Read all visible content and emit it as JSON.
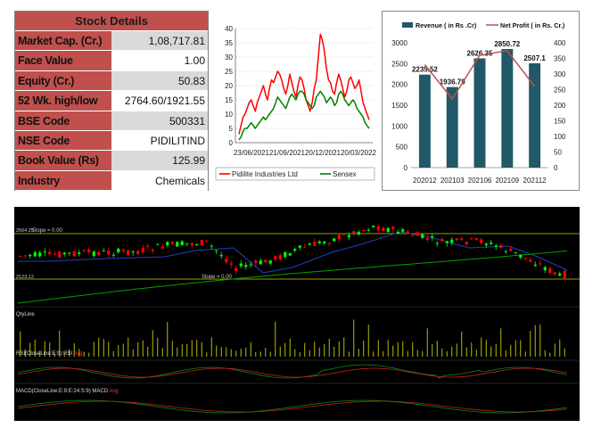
{
  "stock_details": {
    "title": "Stock Details",
    "rows": [
      {
        "label": "Market Cap. (Cr.)",
        "value": "1,08,717.81"
      },
      {
        "label": "Face Value",
        "value": "1.00"
      },
      {
        "label": "Equity (Cr.)",
        "value": "50.83"
      },
      {
        "label": "52 Wk. high/low",
        "value": "2764.60/1921.55"
      },
      {
        "label": "BSE Code",
        "value": "500331"
      },
      {
        "label": "NSE Code",
        "value": "PIDILITIND"
      },
      {
        "label": "Book Value (Rs)",
        "value": "125.99"
      },
      {
        "label": "Industry",
        "value": "Chemicals"
      }
    ]
  },
  "chart_data": [
    {
      "type": "line",
      "ylim": [
        0,
        40
      ],
      "yticks": [
        0,
        5,
        10,
        15,
        20,
        25,
        30,
        35,
        40
      ],
      "x_tick_labels": [
        "23/06/2021",
        "21/09/2021",
        "20/12/2021",
        "20/03/2022"
      ],
      "legend_placement": "bottom",
      "series": [
        {
          "name": "Pidilite Industries Ltd",
          "color": "#ff0000",
          "values": [
            3,
            6,
            9,
            10,
            12,
            14,
            15,
            13,
            11,
            14,
            16,
            18,
            20,
            17,
            15,
            19,
            22,
            21,
            23,
            25,
            24,
            22,
            19,
            17,
            20,
            24,
            21,
            18,
            16,
            20,
            23,
            22,
            19,
            15,
            13,
            11,
            14,
            19,
            22,
            30,
            38,
            36,
            32,
            26,
            22,
            21,
            18,
            17,
            21,
            24,
            22,
            19,
            16,
            18,
            22,
            23,
            21,
            19,
            20,
            22,
            18,
            14,
            12,
            10,
            8
          ]
        },
        {
          "name": "Sensex",
          "color": "#008000",
          "values": [
            1,
            2,
            4,
            5,
            5,
            6,
            7,
            6,
            5,
            6,
            7,
            8,
            9,
            8,
            9,
            10,
            11,
            12,
            14,
            16,
            15,
            14,
            13,
            12,
            14,
            16,
            17,
            16,
            15,
            17,
            18,
            18,
            17,
            15,
            14,
            13,
            12,
            13,
            16,
            17,
            18,
            17,
            16,
            14,
            15,
            16,
            15,
            13,
            14,
            17,
            18,
            17,
            15,
            14,
            13,
            14,
            15,
            14,
            12,
            11,
            10,
            9,
            7,
            6,
            5
          ]
        }
      ]
    },
    {
      "type": "bar",
      "categories": [
        "202012",
        "202103",
        "202106",
        "202109",
        "202112"
      ],
      "series": [
        {
          "name": "Revenue ( in Rs .Cr)",
          "type": "bar",
          "color": "#215968",
          "axis": "left",
          "values": [
            2235.52,
            1936.79,
            2626.35,
            2850.72,
            2507.1
          ],
          "labels": [
            "2235.52",
            "1936.79",
            "2626.35",
            "2850.72",
            "2507.1"
          ]
        },
        {
          "name": "Net Profit ( in Rs. Cr.)",
          "type": "line",
          "color": "#c0504d",
          "axis": "right",
          "values": [
            330,
            220,
            360,
            375,
            260
          ]
        }
      ],
      "ylim_left": [
        0,
        3000
      ],
      "yticks_left": [
        0,
        500,
        1000,
        1500,
        2000,
        2500,
        3000
      ],
      "ylim_right": [
        0,
        400
      ],
      "yticks_right": [
        0,
        50,
        100,
        150,
        200,
        250,
        300,
        350,
        400
      ],
      "legend_placement": "top"
    },
    {
      "type": "candlestick",
      "panels": [
        {
          "name": "price",
          "labels": [
            "Slope = 0.00",
            "2564.25",
            "2123.12",
            "Slope = 0.00"
          ]
        },
        {
          "name": "volume",
          "label": "QtyLine"
        },
        {
          "name": "rsi",
          "label": "RSI(CloseLine:E:9) RSI",
          "label_extra": "Avg"
        },
        {
          "name": "macd",
          "label": "MACD(CloseLine:E:9:E:24:S:9) MACD",
          "label_extra": "Avg"
        }
      ],
      "colors": {
        "up": "#00ff00",
        "down": "#ff0000",
        "hline": "#c8d400",
        "ma_fast": "#1f3fbf",
        "ma_slow": "#00a000",
        "volume": "#b8b800"
      }
    }
  ]
}
